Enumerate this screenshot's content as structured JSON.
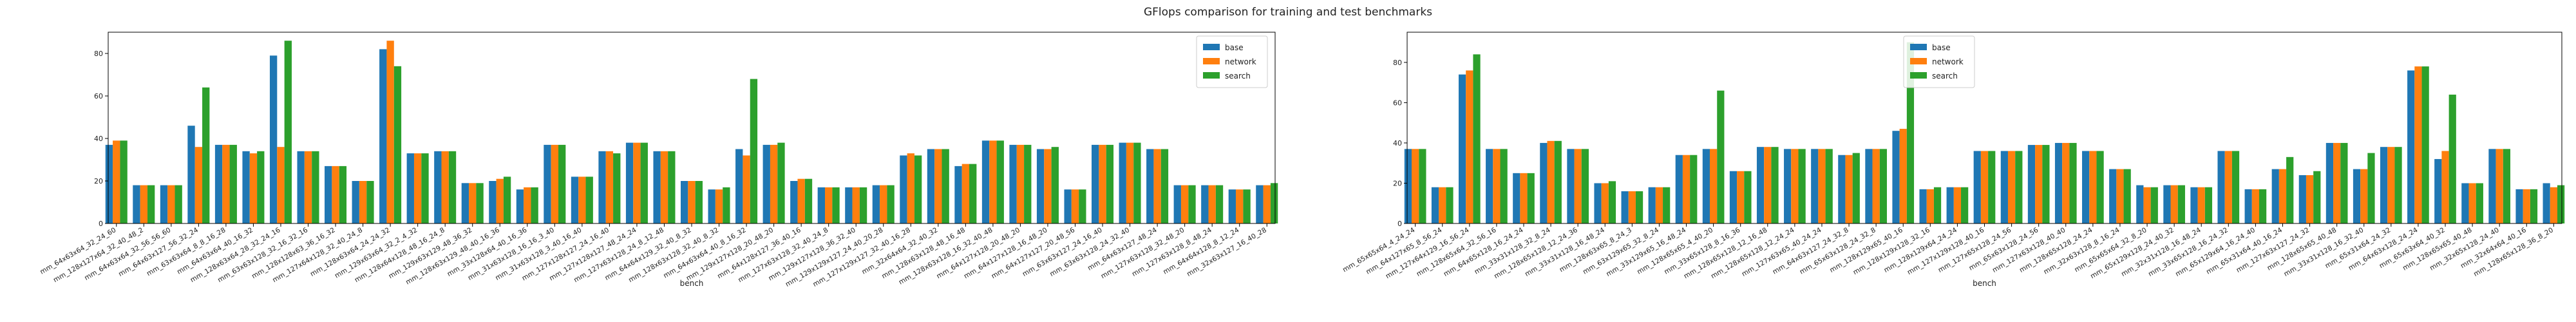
{
  "figure_title": "GFlops comparison for training and test benchmarks",
  "colors": {
    "base": "#1f77b4",
    "network": "#ff7f0e",
    "search": "#2ca02c"
  },
  "chart_data": [
    {
      "type": "bar",
      "xlabel": "bench",
      "ylabel": "",
      "ylim": [
        0,
        90
      ],
      "yticks": [
        0,
        20,
        40,
        60,
        80
      ],
      "legend_position": "top-right",
      "grid": false,
      "categories": [
        "mm_64x63x64_32_24_60",
        "mm_128x127x64_32_40_48_2",
        "mm_64x63x64_32_56_56_60",
        "mm_64x63x127_56_32_24",
        "mm_63x63x64_8_8_16_28",
        "mm_64x63x64_40_16_32",
        "mm_128x63x64_28_32_24_16",
        "mm_63x63x128_32_16_32_16",
        "mm_128x128x63_36_16_32",
        "mm_127x64x128_32_40_24_8",
        "mm_128x63x64_24_24_32",
        "mm_129x63x64_32_2_4_32",
        "mm_128x64x128_48_16_24_8",
        "mm_129x63x129_48_36_32",
        "mm_128x63x129_48_40_16_36",
        "mm_33x128x64_40_16_36",
        "mm_31x63x128_16_16_3_40",
        "mm_31x63x128_3_40_16_40",
        "mm_127x128x127_24_16_40",
        "mm_127x128x127_48_24_24",
        "mm_127x63x128_24_8_12_48",
        "mm_64x64x129_32_40_8_32",
        "mm_128x63x128_32_40_8_32",
        "mm_64x63x64_40_8_16_32",
        "mm_129x127x128_20_48_20",
        "mm_64x128x127_36_40_16",
        "mm_127x63x128_32_40_24_8",
        "mm_129x127x128_36_32_40",
        "mm_129x129x127_24_40_20_28",
        "mm_127x129x127_32_40_16_28",
        "mm_32x64x64_32_40_32",
        "mm_128x63x128_48_16_48",
        "mm_128x63x128_16_32_40_48",
        "mm_64x127x128_20_48_20",
        "mm_64x127x128_16_48_20",
        "mm_64x127x127_20_48_56",
        "mm_63x63x127_24_16_40",
        "mm_63x63x128_24_32_40",
        "mm_64x63x127_48_24",
        "mm_127x63x128_32_48_20",
        "mm_127x63x128_8_48_24",
        "mm_64x64x128_8_12_24",
        "mm_32x63x127_16_40_28"
      ],
      "series": [
        {
          "name": "base",
          "values": [
            37,
            18,
            18,
            46,
            37,
            34,
            79,
            34,
            27,
            20,
            82,
            33,
            34,
            19,
            20,
            16,
            37,
            22,
            34,
            38,
            34,
            20,
            16,
            35,
            37,
            20,
            17,
            17,
            18,
            32,
            35,
            27,
            39,
            37,
            35,
            16,
            37,
            38,
            35,
            18,
            18,
            16,
            18
          ]
        },
        {
          "name": "network",
          "values": [
            39,
            18,
            18,
            36,
            37,
            33,
            36,
            34,
            27,
            20,
            86,
            33,
            34,
            19,
            21,
            17,
            37,
            22,
            34,
            38,
            34,
            20,
            16,
            32,
            37,
            21,
            17,
            17,
            18,
            33,
            35,
            28,
            39,
            37,
            35,
            16,
            37,
            38,
            35,
            18,
            18,
            16,
            18
          ]
        },
        {
          "name": "search",
          "values": [
            39,
            18,
            18,
            64,
            37,
            34,
            86,
            34,
            27,
            20,
            74,
            33,
            34,
            19,
            22,
            17,
            37,
            22,
            33,
            38,
            34,
            20,
            17,
            68,
            38,
            21,
            17,
            17,
            18,
            32,
            35,
            28,
            39,
            37,
            36,
            16,
            37,
            38,
            35,
            18,
            18,
            16,
            19
          ]
        }
      ]
    },
    {
      "type": "bar",
      "xlabel": "bench",
      "ylabel": "",
      "ylim": [
        0,
        95
      ],
      "yticks": [
        0,
        20,
        40,
        60,
        80
      ],
      "legend_position": "top-left",
      "grid": false,
      "categories": [
        "mm_65x65x64_4_24_24",
        "mm_64x127x65_8_56_24",
        "mm_127x64x129_16_56_24",
        "mm_128x65x64_32_56_16",
        "mm_64x65x128_16_24_24",
        "mm_33x31x128_32_8_24",
        "mm_128x65x128_12_24_36",
        "mm_33x31x128_16_48_24",
        "mm_128x63x65_8_24_3",
        "mm_63x129x65_32_8_24",
        "mm_33x129x65_16_48_24",
        "mm_128x65x65_4_40_20",
        "mm_33x65x128_8_16_36",
        "mm_128x65x128_12_16_48",
        "mm_128x65x128_12_24_24",
        "mm_127x63x65_40_24_24",
        "mm_64x63x127_24_32_8",
        "mm_65x63x128_24_32_8",
        "mm_128x129x65_40_16",
        "mm_128x129x128_32_16",
        "mm_128x129x64_24_24",
        "mm_127x129x128_40_16",
        "mm_127x65x128_24_56",
        "mm_65x63x128_24_56",
        "mm_127x63x128_40_40",
        "mm_128x65x128_24_24",
        "mm_32x63x128_8_16_24",
        "mm_65x65x64_32_8_20",
        "mm_65x129x128_24_40_32",
        "mm_32x31x128_16_48_24",
        "mm_33x65x128_16_24_32",
        "mm_65x129x64_16_24_40",
        "mm_65x31x64_40_16_24",
        "mm_127x63x127_24_32",
        "mm_128x65x65_40_48",
        "mm_33x31x128_16_32_40",
        "mm_65x31x64_24_32",
        "mm_64x63x128_24_24",
        "mm_65x63x64_40_32",
        "mm_128x65x65_40_48",
        "mm_32x65x128_24_40",
        "mm_32x64x64_40_16",
        "mm_128x65x128_36_8_20"
      ],
      "series": [
        {
          "name": "base",
          "values": [
            37,
            18,
            74,
            37,
            25,
            40,
            37,
            20,
            16,
            18,
            34,
            37,
            26,
            38,
            37,
            37,
            34,
            37,
            46,
            17,
            18,
            36,
            36,
            39,
            40,
            36,
            27,
            19,
            19,
            18,
            36,
            17,
            27,
            24,
            40,
            27,
            38,
            76,
            32,
            20,
            37,
            17,
            20
          ]
        },
        {
          "name": "network",
          "values": [
            37,
            18,
            76,
            37,
            25,
            41,
            37,
            20,
            16,
            18,
            34,
            37,
            26,
            38,
            37,
            37,
            34,
            37,
            47,
            17,
            18,
            36,
            36,
            39,
            40,
            36,
            27,
            18,
            19,
            18,
            36,
            17,
            27,
            24,
            40,
            27,
            38,
            78,
            36,
            20,
            37,
            17,
            18
          ]
        },
        {
          "name": "search",
          "values": [
            37,
            18,
            84,
            37,
            25,
            41,
            37,
            21,
            16,
            18,
            34,
            66,
            26,
            38,
            37,
            37,
            35,
            37,
            90,
            18,
            18,
            36,
            36,
            39,
            40,
            36,
            27,
            18,
            19,
            18,
            36,
            17,
            33,
            26,
            40,
            35,
            38,
            78,
            64,
            20,
            37,
            17,
            19
          ]
        }
      ]
    }
  ]
}
